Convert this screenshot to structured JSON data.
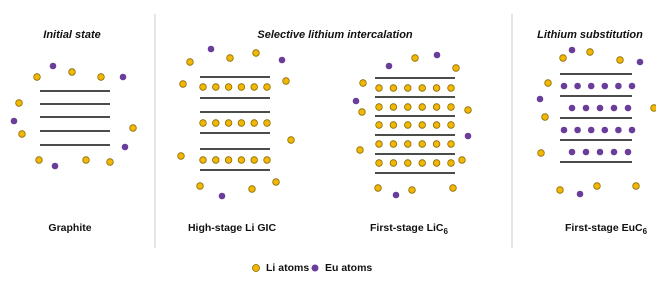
{
  "headers": [
    "Initial state",
    "Selective lithium intercalation",
    "Lithium substitution"
  ],
  "labels": [
    {
      "text": "Graphite"
    },
    {
      "text": "High-stage Li GIC"
    },
    {
      "text": "First-stage LiC",
      "subscript": "6"
    },
    {
      "text": "First-stage EuC",
      "subscript": "6"
    }
  ],
  "legend": [
    "Li atoms",
    "Eu atoms"
  ]
}
